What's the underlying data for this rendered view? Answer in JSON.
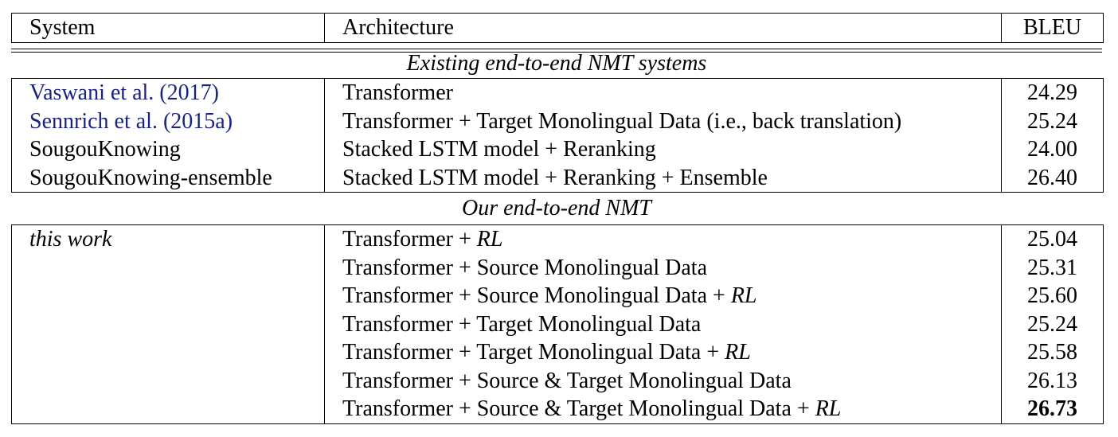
{
  "header": {
    "system": "System",
    "architecture": "Architecture",
    "bleu": "BLEU"
  },
  "sections": {
    "existing_title": "Existing end-to-end NMT systems",
    "ours_title": "Our end-to-end NMT"
  },
  "existing_rows": [
    {
      "system": "Vaswani et al. (2017)",
      "architecture": "Transformer",
      "bleu": "24.29"
    },
    {
      "system": "Sennrich et al. (2015a)",
      "architecture": "Transformer + Target Monolingual Data (i.e., back translation)",
      "bleu": "25.24"
    },
    {
      "system": "SougouKnowing",
      "architecture": "Stacked LSTM model + Reranking",
      "bleu": "24.00"
    },
    {
      "system": "SougouKnowing-ensemble",
      "architecture": "Stacked LSTM model + Reranking + Ensemble",
      "bleu": "26.40"
    }
  ],
  "ours_system": "this work",
  "ours_rows": [
    {
      "arch_main": "Transformer + ",
      "arch_rl": "RL",
      "bleu": "25.04"
    },
    {
      "arch_main": "Transformer + Source Monolingual Data",
      "arch_rl": "",
      "bleu": "25.31"
    },
    {
      "arch_main": "Transformer + Source Monolingual Data + ",
      "arch_rl": "RL",
      "bleu": "25.60"
    },
    {
      "arch_main": "Transformer + Target Monolingual Data",
      "arch_rl": "",
      "bleu": "25.24"
    },
    {
      "arch_main": "Transformer + Target Monolingual Data + ",
      "arch_rl": "RL",
      "bleu": "25.58"
    },
    {
      "arch_main": "Transformer + Source & Target Monolingual Data",
      "arch_rl": "",
      "bleu": "26.13"
    },
    {
      "arch_main": "Transformer + Source & Target Monolingual Data + ",
      "arch_rl": "RL",
      "bleu": "26.73"
    }
  ],
  "colors": {
    "citation": "#1a237e",
    "text": "#000000",
    "rule": "#000000"
  }
}
